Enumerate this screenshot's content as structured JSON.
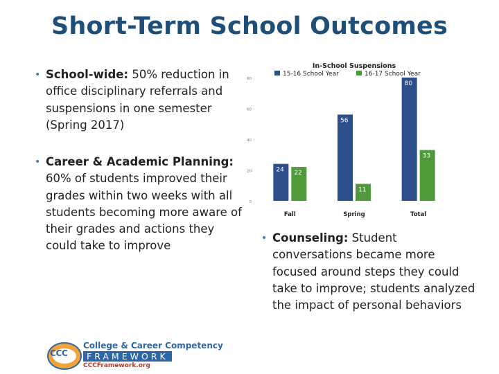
{
  "slide": {
    "title": "Short-Term School Outcomes"
  },
  "bullets": [
    {
      "lead": "School-wide:",
      "text": " 50% reduction in office disciplinary referrals and suspensions in one semester (Spring 2017)"
    },
    {
      "lead": "Career & Academic Planning:",
      "text": " 60% of students improved their grades within two weeks with all students becoming more aware of their grades and actions they could take to improve"
    },
    {
      "lead": "Counseling:",
      "text": " Student conversations became more focused around steps they could take to improve; students analyzed the impact of personal behaviors"
    }
  ],
  "chart_data": {
    "type": "bar",
    "title": "In-School Suspensions",
    "categories": [
      "Fall",
      "Spring",
      "Total"
    ],
    "series": [
      {
        "name": "15-16 School Year",
        "color": "#2c4f8c",
        "values": [
          24,
          56,
          80
        ]
      },
      {
        "name": "16-17 School Year",
        "color": "#4f9a3a",
        "values": [
          22,
          11,
          33
        ]
      }
    ],
    "yticks": [
      0,
      20,
      40,
      60,
      80
    ],
    "ylim": [
      0,
      80
    ],
    "legend": "top",
    "data_labels": true,
    "grid": false
  },
  "logo": {
    "letters": "CCC",
    "line1": "College & Career Competency",
    "line2": "FRAMEWORK",
    "line3": "CCCFramework.org"
  }
}
